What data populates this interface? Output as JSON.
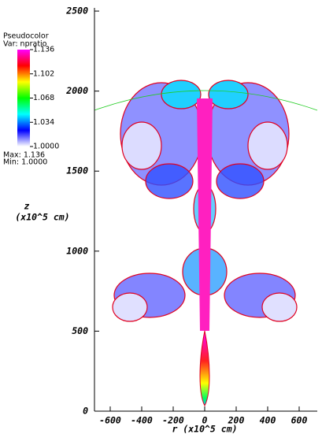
{
  "chart_data": {
    "type": "pseudocolor",
    "xlabel": "r (x10^5 cm)",
    "ylabel": [
      "z",
      "(x10^5 cm)"
    ],
    "xlim": [
      -700,
      715
    ],
    "ylim": [
      0,
      2520
    ],
    "xticks": [
      -600,
      -400,
      -200,
      0,
      200,
      400,
      600
    ],
    "yticks": [
      0,
      500,
      1000,
      1500,
      2000,
      2500
    ],
    "legend": {
      "title": "Pseudocolor",
      "variable": "Var: npratio",
      "range": [
        1,
        1.136
      ],
      "ticks": [
        1.136,
        1.102,
        1.068,
        1.034,
        {
          "value": 1,
          "label": "1.0000"
        }
      ],
      "colors": [
        "#ff00ff",
        "#ff0000",
        "#ffff00",
        "#00ff00",
        "#00ffff",
        "#0000ff",
        "#ffffff"
      ],
      "max": "Max: 1.136",
      "min": "Min: 1.0000"
    }
  }
}
